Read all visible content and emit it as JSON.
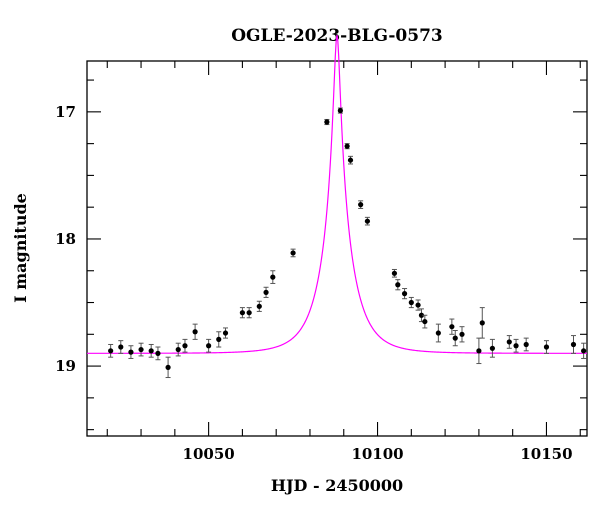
{
  "chart_data": {
    "type": "scatter",
    "title": "OGLE-2023-BLG-0573",
    "xlabel": "HJD - 2450000",
    "ylabel": "I magnitude",
    "xlim": [
      10014,
      10162
    ],
    "ylim": [
      19.55,
      16.6
    ],
    "y_inverted": true,
    "grid": false,
    "x_ticks": [
      10050,
      10100,
      10150
    ],
    "y_ticks": [
      17,
      18,
      19
    ],
    "x_tick_labels": [
      "10050",
      "10100",
      "10150"
    ],
    "y_tick_labels": [
      "17",
      "18",
      "19"
    ],
    "colors": {
      "points": "#000000",
      "model": "#ff00ff",
      "axes": "#000000"
    },
    "series": [
      {
        "type": "scatter_errorbar",
        "x": [
          10021,
          10024,
          10027,
          10030,
          10033,
          10035,
          10038,
          10041,
          10043,
          10046,
          10050,
          10053,
          10055,
          10060,
          10062,
          10065,
          10067,
          10069,
          10075,
          10085,
          10089,
          10091,
          10092,
          10095,
          10097,
          10105,
          10106,
          10108,
          10110,
          10112,
          10113,
          10114,
          10118,
          10122,
          10123,
          10125,
          10130,
          10131,
          10134,
          10139,
          10141,
          10144,
          10150,
          10158,
          10161
        ],
        "y": [
          18.88,
          18.85,
          18.89,
          18.87,
          18.88,
          18.9,
          19.01,
          18.87,
          18.84,
          18.73,
          18.84,
          18.79,
          18.74,
          18.58,
          18.58,
          18.53,
          18.42,
          18.3,
          18.11,
          17.08,
          16.99,
          17.27,
          17.38,
          17.73,
          17.86,
          18.27,
          18.36,
          18.43,
          18.5,
          18.52,
          18.6,
          18.65,
          18.74,
          18.69,
          18.78,
          18.75,
          18.88,
          18.66,
          18.86,
          18.81,
          18.84,
          18.83,
          18.85,
          18.83,
          18.88
        ],
        "yerr": [
          0.05,
          0.05,
          0.05,
          0.05,
          0.05,
          0.05,
          0.08,
          0.05,
          0.05,
          0.06,
          0.05,
          0.06,
          0.04,
          0.04,
          0.04,
          0.04,
          0.04,
          0.05,
          0.03,
          0.02,
          0.02,
          0.02,
          0.03,
          0.03,
          0.03,
          0.03,
          0.04,
          0.04,
          0.04,
          0.04,
          0.05,
          0.05,
          0.07,
          0.06,
          0.06,
          0.06,
          0.1,
          0.12,
          0.07,
          0.05,
          0.05,
          0.05,
          0.05,
          0.07,
          0.06
        ]
      },
      {
        "type": "line",
        "model": "microlensing-point-lens",
        "t0": 10088,
        "tE": 8.3,
        "u0": 0.1,
        "baseline_mag": 18.9,
        "xrange": [
          10014,
          10162
        ]
      }
    ]
  }
}
